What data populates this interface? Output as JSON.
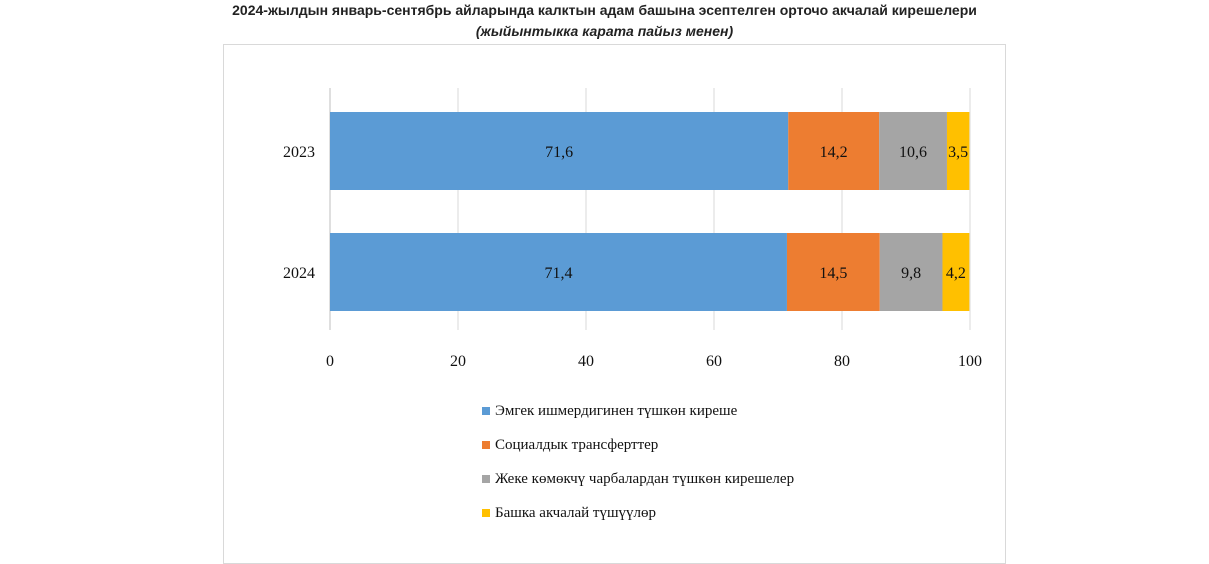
{
  "title": "2024-жылдын январь-сентябрь айларында калктын адам башына эсептелген орточо акчалай кирешелери",
  "subtitle": "(жыйынтыкка карата пайыз менен)",
  "chart_data": {
    "type": "bar",
    "orientation": "horizontal",
    "stacked": true,
    "categories": [
      "2023",
      "2024"
    ],
    "series": [
      {
        "name": "Эмгек ишмердигинен түшкөн киреше",
        "values": [
          71.6,
          71.4
        ],
        "labels": [
          "71,6",
          "71,4"
        ],
        "color": "#5b9bd5"
      },
      {
        "name": "Социалдык трансферттер",
        "values": [
          14.2,
          14.5
        ],
        "labels": [
          "14,2",
          "14,5"
        ],
        "color": "#ed7d31"
      },
      {
        "name": "Жеке көмөкчү чарбалардан түшкөн кирешелер",
        "values": [
          10.6,
          9.8
        ],
        "labels": [
          "10,6",
          "9,8"
        ],
        "color": "#a5a5a5"
      },
      {
        "name": "Башка акчалай түшүүлөр",
        "values": [
          3.5,
          4.2
        ],
        "labels": [
          "3,5",
          "4,2"
        ],
        "color": "#ffc000"
      }
    ],
    "xlim": [
      0,
      100
    ],
    "xticks": [
      0,
      20,
      40,
      60,
      80,
      100
    ],
    "grid": true,
    "legend_position": "bottom"
  }
}
